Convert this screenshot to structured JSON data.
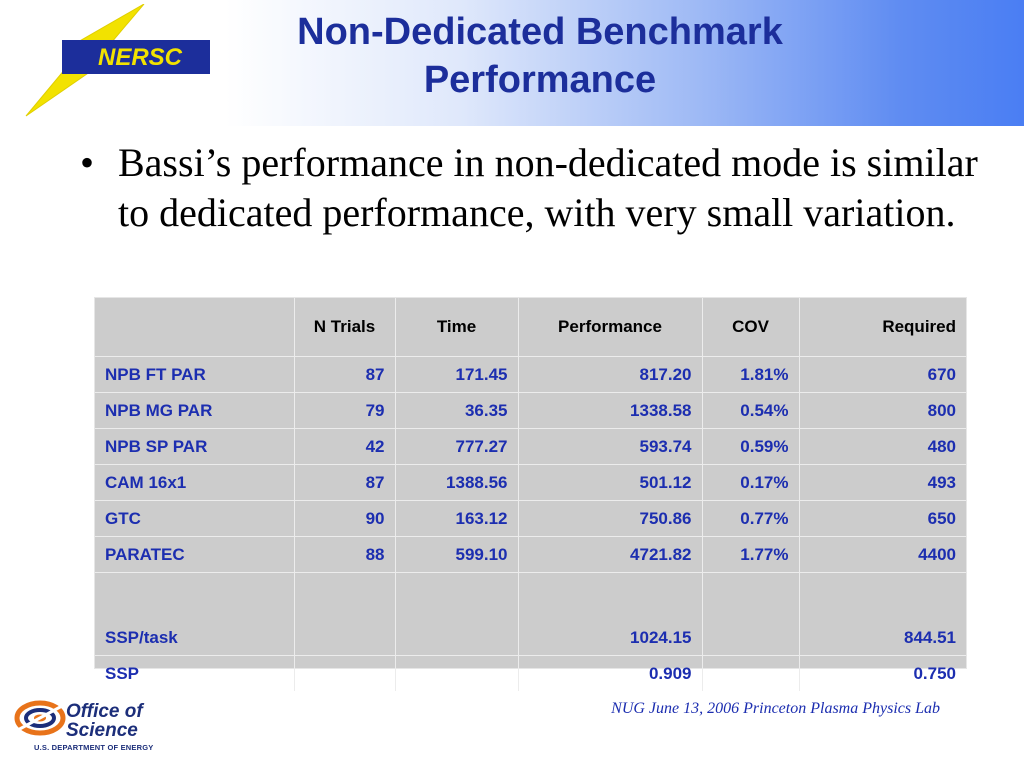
{
  "header": {
    "logo_text": "NERSC",
    "title": "Non-Dedicated Benchmark Performance"
  },
  "bullet": "Bassi’s performance in non-dedicated mode is similar to dedicated performance, with very small variation.",
  "table": {
    "columns": [
      "",
      "N Trials",
      "Time",
      "Performance",
      "COV",
      "Required"
    ],
    "rows": [
      {
        "name": "NPB FT PAR",
        "trials": "87",
        "time": "171.45",
        "performance": "817.20",
        "cov": "1.81%",
        "required": "670"
      },
      {
        "name": "NPB MG PAR",
        "trials": "79",
        "time": "36.35",
        "performance": "1338.58",
        "cov": "0.54%",
        "required": "800"
      },
      {
        "name": "NPB SP PAR",
        "trials": "42",
        "time": "777.27",
        "performance": "593.74",
        "cov": "0.59%",
        "required": "480"
      },
      {
        "name": "CAM 16x1",
        "trials": "87",
        "time": "1388.56",
        "performance": "501.12",
        "cov": "0.17%",
        "required": "493"
      },
      {
        "name": "GTC",
        "trials": "90",
        "time": "163.12",
        "performance": "750.86",
        "cov": "0.77%",
        "required": "650"
      },
      {
        "name": "PARATEC",
        "trials": "88",
        "time": "599.10",
        "performance": "4721.82",
        "cov": "1.77%",
        "required": "4400"
      },
      {
        "name": "SSP/task",
        "trials": "",
        "time": "",
        "performance": "1024.15",
        "cov": "",
        "required": "844.51"
      },
      {
        "name": "SSP",
        "trials": "",
        "time": "",
        "performance": "0.909",
        "cov": "",
        "required": "0.750"
      }
    ]
  },
  "footer": {
    "citation": "NUG June 13, 2006 Princeton Plasma Physics Lab",
    "office_logo_line1": "Office of",
    "office_logo_line2": "Science",
    "office_logo_sub": "U.S. DEPARTMENT OF ENERGY"
  },
  "colors": {
    "title": "#1c2e9b",
    "table_text": "#1c2eb0",
    "table_bg": "#cccccc",
    "header_gradient_end": "#4a7ef3",
    "logo_yellow": "#f2e200"
  }
}
